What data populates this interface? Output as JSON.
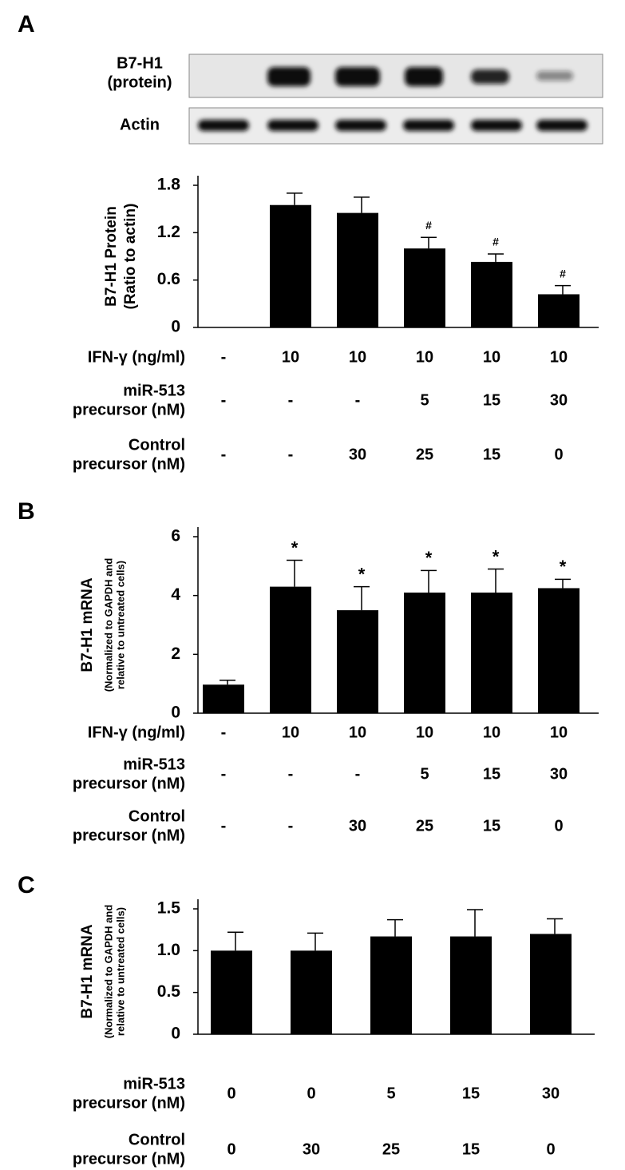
{
  "blot": {
    "labels": [
      [
        "B7-H1",
        "(protein)"
      ],
      [
        "Actin"
      ]
    ]
  },
  "chart_data": [
    {
      "type": "bar",
      "panel": "A",
      "ylabel": [
        "B7-H1 Protein",
        "(Ratio to actin)"
      ],
      "values": [
        null,
        1.55,
        1.45,
        1.0,
        0.83,
        0.42
      ],
      "errors": [
        null,
        0.15,
        0.2,
        0.14,
        0.1,
        0.11
      ],
      "markers": [
        null,
        null,
        null,
        "#",
        "#",
        "#"
      ],
      "color": "#000000",
      "ylim": [
        0,
        1.8
      ],
      "yticks": [
        0,
        0.6,
        1.2,
        1.8
      ],
      "conditions": [
        {
          "label": [
            "IFN-γ (ng/ml)"
          ],
          "values": [
            "-",
            "10",
            "10",
            "10",
            "10",
            "10"
          ]
        },
        {
          "label": [
            "miR-513",
            "precursor (nM)"
          ],
          "values": [
            "-",
            "-",
            "-",
            "5",
            "15",
            "30"
          ]
        },
        {
          "label": [
            "Control",
            "precursor (nM)"
          ],
          "values": [
            "-",
            "-",
            "30",
            "25",
            "15",
            "0"
          ]
        }
      ]
    },
    {
      "type": "bar",
      "panel": "B",
      "ylabel": [
        "B7-H1 mRNA",
        "(Normalized to GAPDH and",
        "relative to untreated cells)"
      ],
      "values": [
        0.97,
        4.3,
        3.5,
        4.1,
        4.1,
        4.25
      ],
      "errors": [
        0.15,
        0.9,
        0.8,
        0.75,
        0.8,
        0.3
      ],
      "markers": [
        null,
        "*",
        "*",
        "*",
        "*",
        "*"
      ],
      "color": "#000000",
      "ylim": [
        0,
        6
      ],
      "yticks": [
        0,
        2,
        4,
        6
      ],
      "conditions": [
        {
          "label": [
            "IFN-γ (ng/ml)"
          ],
          "values": [
            "-",
            "10",
            "10",
            "10",
            "10",
            "10"
          ]
        },
        {
          "label": [
            "miR-513",
            "precursor (nM)"
          ],
          "values": [
            "-",
            "-",
            "-",
            "5",
            "15",
            "30"
          ]
        },
        {
          "label": [
            "Control",
            "precursor (nM)"
          ],
          "values": [
            "-",
            "-",
            "30",
            "25",
            "15",
            "0"
          ]
        }
      ]
    },
    {
      "type": "bar",
      "panel": "C",
      "ylabel": [
        "B7-H1 mRNA",
        "(Normalized to GAPDH and",
        "relative to untreated cells)"
      ],
      "values": [
        1.0,
        1.0,
        1.17,
        1.17,
        1.2
      ],
      "errors": [
        0.22,
        0.21,
        0.2,
        0.32,
        0.18
      ],
      "color": "#000000",
      "ylim": [
        0,
        1.5
      ],
      "yticks": [
        0,
        0.5,
        {
          "value": 1,
          "label": "1.0"
        },
        1.5
      ],
      "conditions": [
        {
          "label": [
            "miR-513",
            "precursor (nM)"
          ],
          "values": [
            "0",
            "0",
            "5",
            "15",
            "30"
          ]
        },
        {
          "label": [
            "Control",
            "precursor (nM)"
          ],
          "values": [
            "0",
            "30",
            "25",
            "15",
            "0"
          ]
        }
      ]
    }
  ]
}
